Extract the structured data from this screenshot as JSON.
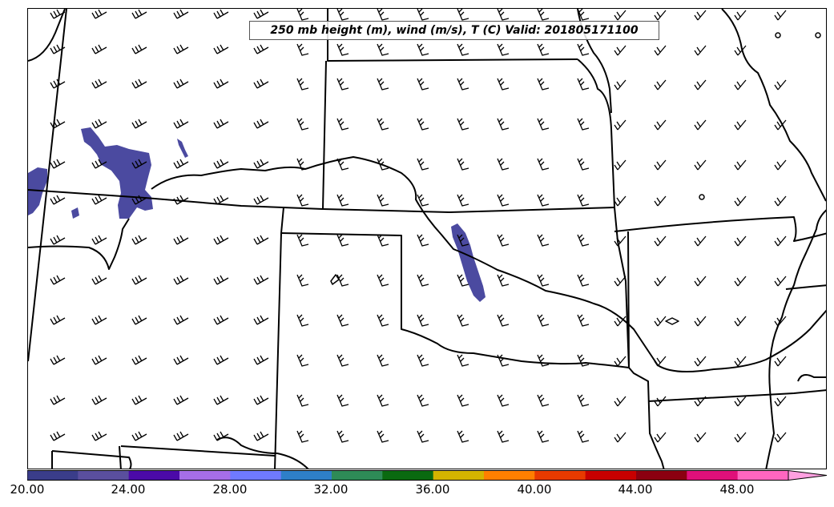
{
  "map": {
    "title": "250 mb height (m), wind (m/s), T (C) Valid: 201805171100",
    "fill_color": "#4b4aa0"
  },
  "colorbar": {
    "labels": [
      "20.00",
      "24.00",
      "28.00",
      "32.00",
      "36.00",
      "40.00",
      "44.00",
      "48.00"
    ],
    "colors": [
      "#3a3d8a",
      "#5a4f9e",
      "#4b0aa8",
      "#a66ee8",
      "#6f7aff",
      "#2e7fc8",
      "#2e8b57",
      "#0a6a10",
      "#d4b400",
      "#ff7f00",
      "#e83a00",
      "#c80000",
      "#8b0010",
      "#e0107a",
      "#ff66c0",
      "#ffa0e0"
    ]
  },
  "barb_rows": [
    {
      "y": 18,
      "xs": [
        66,
        118,
        168,
        220,
        270,
        320,
        370,
        420,
        470,
        520,
        570,
        620,
        670,
        720,
        770,
        820,
        870,
        920,
        970
      ]
    },
    {
      "y": 62,
      "xs": [
        66,
        118,
        168,
        220,
        270,
        320,
        370,
        420,
        470,
        520,
        570,
        620,
        670,
        720,
        770,
        820,
        870,
        920
      ]
    },
    {
      "y": 105,
      "xs": [
        66,
        118,
        168,
        220,
        270,
        320,
        370,
        420,
        470,
        520,
        570,
        620,
        670,
        720,
        770,
        820,
        870,
        920,
        970
      ]
    },
    {
      "y": 155,
      "xs": [
        66,
        118,
        168,
        220,
        270,
        320,
        370,
        420,
        470,
        520,
        570,
        620,
        670,
        720,
        770,
        820,
        870,
        920,
        970
      ]
    },
    {
      "y": 205,
      "xs": [
        66,
        118,
        168,
        220,
        270,
        320,
        370,
        420,
        470,
        520,
        570,
        620,
        670,
        720,
        770,
        820,
        870,
        920,
        970
      ]
    },
    {
      "y": 250,
      "xs": [
        66,
        118,
        168,
        220,
        270,
        320,
        370,
        420,
        470,
        520,
        570,
        620,
        670,
        720,
        770,
        820,
        920,
        970
      ]
    },
    {
      "y": 300,
      "xs": [
        66,
        118,
        168,
        220,
        270,
        320,
        370,
        420,
        470,
        520,
        570,
        620,
        670,
        720,
        770,
        820,
        870,
        920,
        970
      ]
    },
    {
      "y": 350,
      "xs": [
        66,
        118,
        168,
        220,
        270,
        320,
        370,
        420,
        470,
        520,
        570,
        620,
        670,
        720,
        770,
        820,
        870,
        920,
        970
      ]
    },
    {
      "y": 400,
      "xs": [
        66,
        118,
        168,
        220,
        270,
        320,
        370,
        420,
        470,
        520,
        570,
        620,
        670,
        720,
        770,
        820,
        870,
        920,
        970
      ]
    },
    {
      "y": 450,
      "xs": [
        66,
        118,
        168,
        220,
        270,
        320,
        370,
        420,
        470,
        520,
        570,
        620,
        670,
        720,
        770,
        820,
        870,
        920,
        970
      ]
    },
    {
      "y": 500,
      "xs": [
        66,
        118,
        168,
        220,
        270,
        320,
        370,
        420,
        470,
        520,
        570,
        620,
        670,
        720,
        770,
        820,
        870,
        920,
        970
      ]
    },
    {
      "y": 545,
      "xs": [
        66,
        118,
        168,
        220,
        270,
        320,
        370,
        420,
        470,
        520,
        570,
        620,
        670,
        720,
        770,
        820,
        870,
        920,
        970
      ]
    }
  ]
}
